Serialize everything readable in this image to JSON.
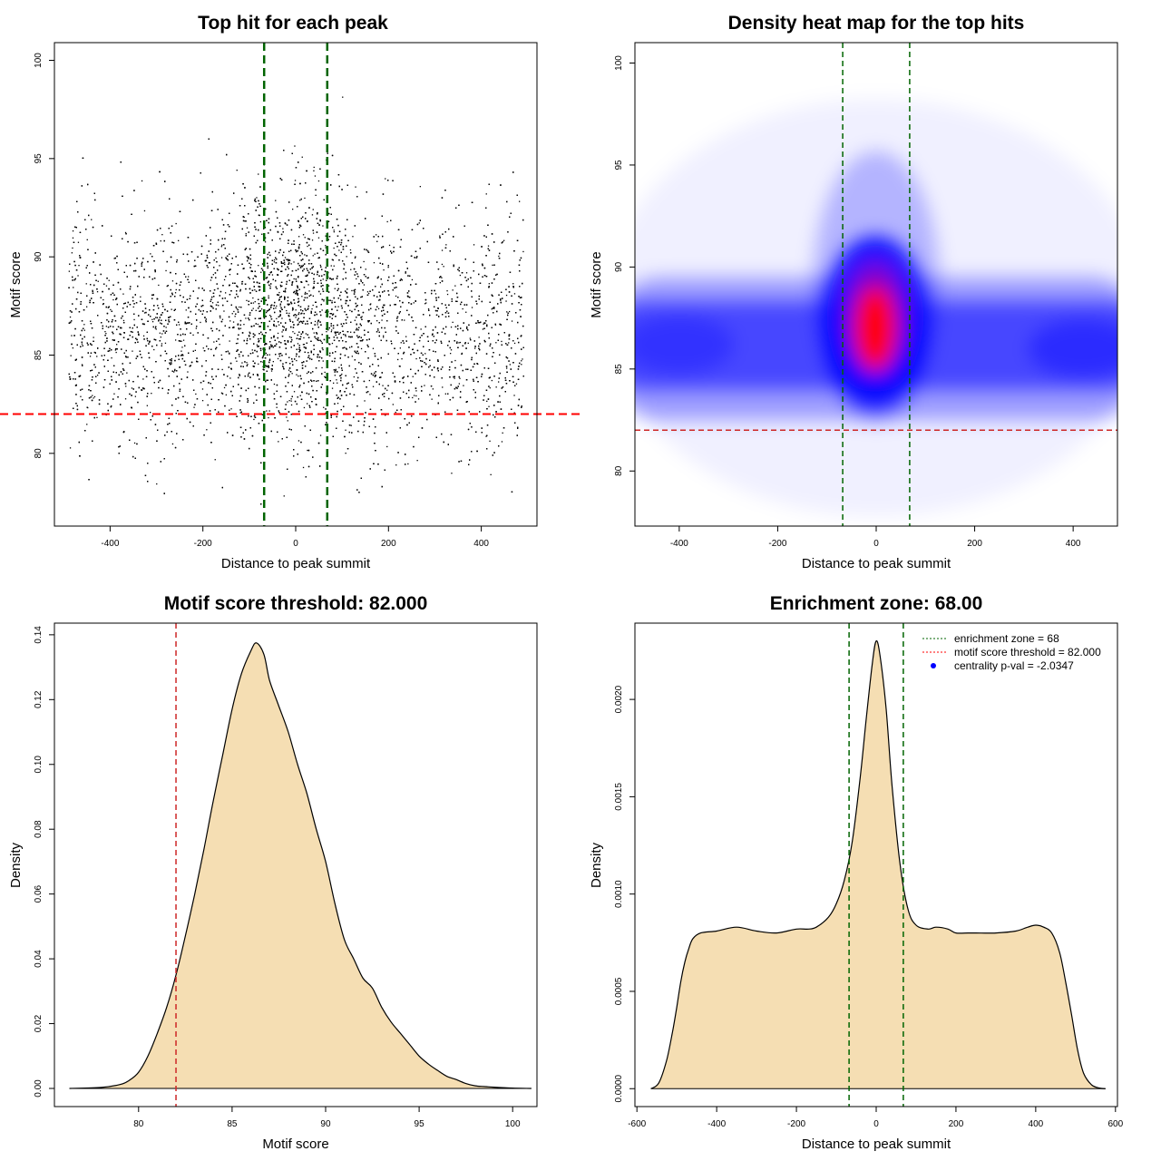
{
  "chart_data": [
    {
      "id": "scatter",
      "type": "scatter",
      "title": "Top hit for each peak",
      "xlabel": "Distance to peak summit",
      "ylabel": "Motif score",
      "xlim": [
        -520,
        520
      ],
      "ylim": [
        76.3,
        100.9
      ],
      "xticks": [
        -400,
        -200,
        0,
        200,
        400
      ],
      "yticks": [
        80,
        85,
        90,
        95,
        100
      ],
      "xtick_labels": [
        "-400",
        "-200",
        "0",
        "200",
        "400"
      ],
      "ytick_labels": [
        "80",
        "85",
        "90",
        "95",
        "100"
      ],
      "vlines": [
        -68,
        68
      ],
      "hline": 82.0,
      "point_count": 9000,
      "distribution": {
        "x_range": [
          -490,
          490
        ],
        "central_fraction": 0.22,
        "central_sd_x": 75,
        "score_mean_central": 87.6,
        "score_mean_background": 86.3,
        "score_sd": 3.1,
        "y_range": [
          77.3,
          100
        ]
      },
      "point_color": "#000000",
      "vline_color": "#006400",
      "hline_color": "#ff0000"
    },
    {
      "id": "heatmap",
      "type": "heatmap",
      "title": "Density heat map for the top hits",
      "xlabel": "Distance to peak summit",
      "ylabel": "Motif score",
      "xlim": [
        -490,
        490
      ],
      "ylim": [
        77.3,
        101
      ],
      "xticks": [
        -400,
        -200,
        0,
        200,
        400
      ],
      "yticks": [
        80,
        85,
        90,
        95,
        100
      ],
      "xtick_labels": [
        "-400",
        "-200",
        "0",
        "200",
        "400"
      ],
      "ytick_labels": [
        "80",
        "85",
        "90",
        "95",
        "100"
      ],
      "vlines": [
        -68,
        68
      ],
      "hline": 82.0,
      "colormap": [
        "#ffffff",
        "#0000ff",
        "#ff0000"
      ],
      "density_peak": {
        "x": -2,
        "y": 87.0
      },
      "vline_color": "#006400",
      "hline_color": "#cd2626"
    },
    {
      "id": "score_density",
      "type": "area",
      "title": "Motif score threshold: 82.000",
      "xlabel": "Motif score",
      "ylabel": "Density",
      "xlim": [
        75.5,
        101.3
      ],
      "ylim": [
        -0.0056,
        0.1436
      ],
      "xticks": [
        80,
        85,
        90,
        95,
        100
      ],
      "yticks": [
        0,
        0.02,
        0.04,
        0.06,
        0.08,
        0.1,
        0.12,
        0.14
      ],
      "xtick_labels": [
        "80",
        "85",
        "90",
        "95",
        "100"
      ],
      "ytick_labels": [
        "0.00",
        "0.02",
        "0.04",
        "0.06",
        "0.08",
        "0.10",
        "0.12",
        "0.14"
      ],
      "x": [
        76.3,
        78.0,
        79.0,
        79.5,
        80.0,
        80.5,
        81.0,
        81.5,
        82.0,
        82.5,
        83.0,
        83.5,
        84.0,
        84.5,
        85.0,
        85.5,
        86.0,
        86.3,
        86.7,
        87.0,
        87.5,
        88.0,
        88.5,
        89.0,
        89.5,
        90.0,
        90.5,
        91.0,
        91.5,
        92.0,
        92.5,
        93.0,
        93.5,
        94.0,
        94.5,
        95.0,
        95.5,
        96.0,
        96.5,
        97.0,
        97.5,
        98.0,
        98.5,
        99.0,
        100.0,
        101.0
      ],
      "y": [
        0.0,
        0.0003,
        0.0012,
        0.0025,
        0.005,
        0.01,
        0.017,
        0.025,
        0.035,
        0.047,
        0.06,
        0.074,
        0.089,
        0.103,
        0.117,
        0.128,
        0.135,
        0.1375,
        0.134,
        0.126,
        0.118,
        0.11,
        0.1,
        0.091,
        0.08,
        0.07,
        0.057,
        0.046,
        0.04,
        0.034,
        0.031,
        0.025,
        0.0205,
        0.017,
        0.0135,
        0.01,
        0.0075,
        0.0055,
        0.0037,
        0.0027,
        0.0015,
        0.0008,
        0.0006,
        0.0004,
        0.0001,
        0.0
      ],
      "vline": 82.0,
      "fill_color": "#f5deb3",
      "vline_color": "#cd2626"
    },
    {
      "id": "distance_density",
      "type": "area",
      "title": "Enrichment zone: 68.00",
      "xlabel": "Distance to peak summit",
      "ylabel": "Density",
      "xlim": [
        -605,
        605
      ],
      "ylim": [
        -9.2e-05,
        0.002392
      ],
      "xticks": [
        -600,
        -400,
        -200,
        0,
        200,
        400,
        600
      ],
      "yticks": [
        0,
        0.0005,
        0.001,
        0.0015,
        0.002
      ],
      "xtick_labels": [
        "-600",
        "-400",
        "-200",
        "0",
        "200",
        "400",
        "600"
      ],
      "ytick_labels": [
        "0.0000",
        "0.0005",
        "0.0010",
        "0.0015",
        "0.0020"
      ],
      "x": [
        -565,
        -545,
        -525,
        -510,
        -500,
        -490,
        -480,
        -470,
        -460,
        -440,
        -400,
        -350,
        -300,
        -250,
        -200,
        -170,
        -150,
        -120,
        -100,
        -80,
        -60,
        -40,
        -25,
        -10,
        0,
        10,
        25,
        40,
        60,
        80,
        100,
        130,
        150,
        180,
        200,
        230,
        250,
        300,
        350,
        380,
        400,
        420,
        440,
        460,
        475,
        490,
        505,
        520,
        540,
        560,
        575
      ],
      "y": [
        0.0,
        3e-05,
        0.00015,
        0.0003,
        0.00042,
        0.00055,
        0.00065,
        0.00072,
        0.00077,
        0.0008,
        0.00081,
        0.00083,
        0.00081,
        0.0008,
        0.00082,
        0.00082,
        0.00083,
        0.00088,
        0.00095,
        0.00107,
        0.00127,
        0.0016,
        0.0019,
        0.00218,
        0.0023,
        0.00222,
        0.00195,
        0.00155,
        0.00115,
        0.00092,
        0.00084,
        0.00082,
        0.00083,
        0.00082,
        0.0008,
        0.0008,
        0.0008,
        0.0008,
        0.00081,
        0.00083,
        0.00084,
        0.00083,
        0.0008,
        0.0007,
        0.00055,
        0.00038,
        0.0002,
        8e-05,
        2e-05,
        3e-06,
        0.0
      ],
      "vlines": [
        -68,
        68
      ],
      "fill_color": "#f5deb3",
      "vline_color": "#006400",
      "legend": {
        "position": "top-right",
        "entries": [
          {
            "label": "enrichment zone = 68",
            "style": "dotted-line",
            "color": "#006400"
          },
          {
            "label": "motif score threshold = 82.000",
            "style": "dotted-line",
            "color": "#ff0000"
          },
          {
            "label": "centrality p-val = -2.0347",
            "style": "point",
            "color": "#0000ff"
          }
        ]
      }
    }
  ]
}
